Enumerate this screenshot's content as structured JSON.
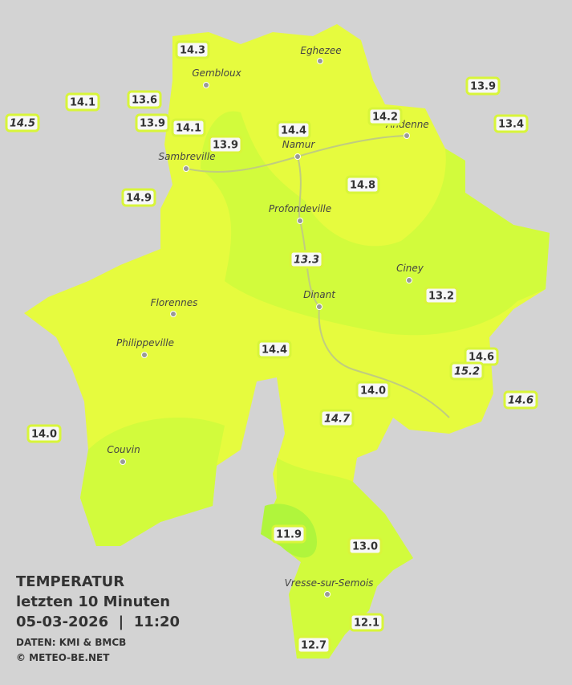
{
  "legend": {
    "title": "TEMPERATUR",
    "period": "letzten 10 Minuten",
    "datetime": "05-03-2026  |  11:20",
    "source": "DATEN: KMI & BMCB",
    "copyright": "© METEO-BE.NET"
  },
  "towns": [
    "Eghezee",
    "Gembloux",
    "Andenne",
    "Namur",
    "Sambreville",
    "Profondeville",
    "Ciney",
    "Dinant",
    "Florennes",
    "Philippeville",
    "Couvin",
    "Vresse-sur-Semois"
  ],
  "stations": [
    "14.3",
    "14.1",
    "13.6",
    "14.5",
    "13.9",
    "14.1",
    "13.9",
    "14.4",
    "14.2",
    "13.9",
    "13.4",
    "14.9",
    "14.8",
    "13.3",
    "13.2",
    "14.4",
    "14.6",
    "15.2",
    "14.0",
    "14.6",
    "14.7",
    "14.0",
    "11.9",
    "13.0",
    "12.1",
    "12.7"
  ]
}
